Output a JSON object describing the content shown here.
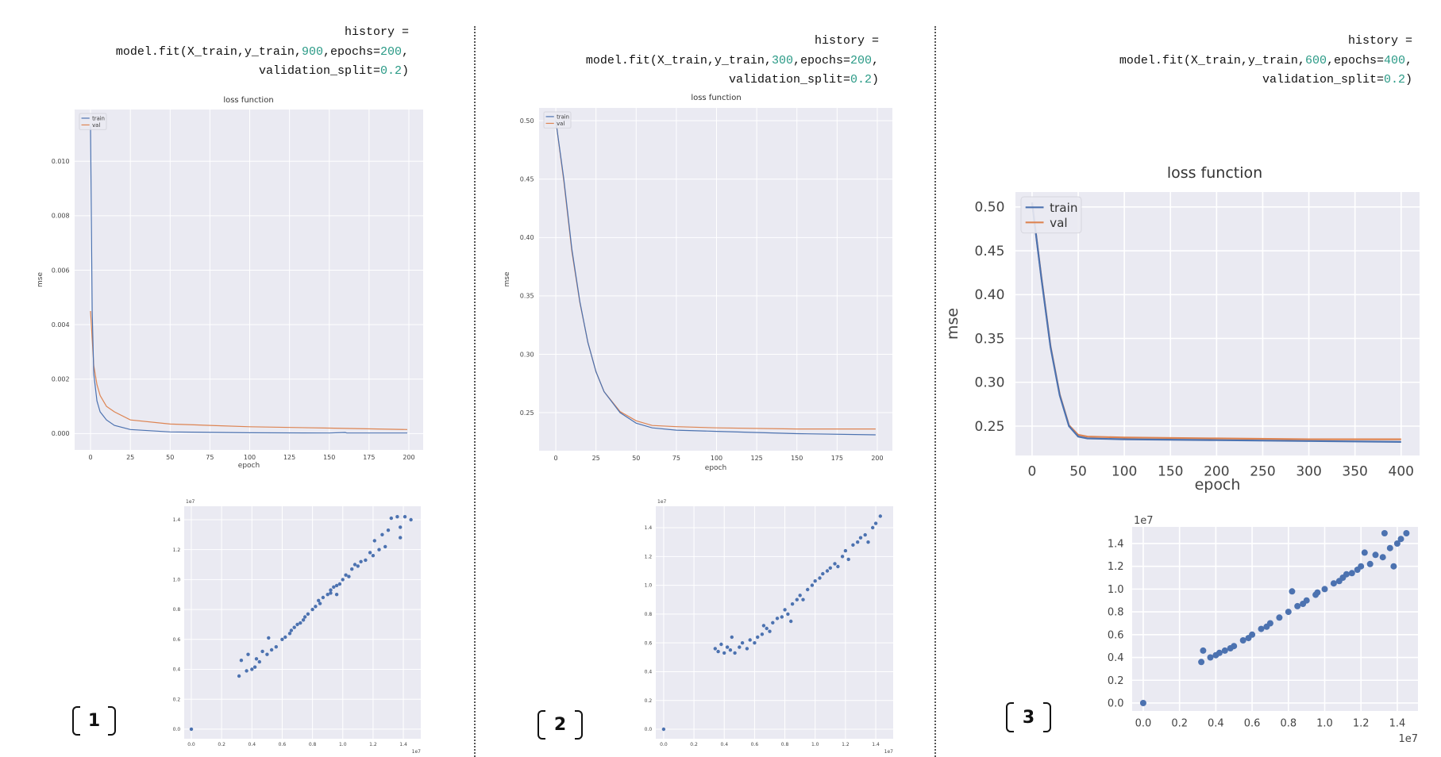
{
  "panels": [
    {
      "label": "1",
      "code": [
        [
          {
            "t": "history ="
          }
        ],
        [
          {
            "t": "model.fit(X_train,y_train,"
          },
          {
            "t": "900",
            "n": true
          },
          {
            "t": ",epochs="
          },
          {
            "t": "200",
            "n": true
          },
          {
            "t": ","
          }
        ],
        [
          {
            "t": "validation_split="
          },
          {
            "t": "0.2",
            "n": true
          },
          {
            "t": ")"
          }
        ]
      ]
    },
    {
      "label": "2",
      "code": [
        [
          {
            "t": "history ="
          }
        ],
        [
          {
            "t": "model.fit(X_train,y_train,"
          },
          {
            "t": "300",
            "n": true
          },
          {
            "t": ",epochs="
          },
          {
            "t": "200",
            "n": true
          },
          {
            "t": ","
          }
        ],
        [
          {
            "t": "validation_split="
          },
          {
            "t": "0.2",
            "n": true
          },
          {
            "t": ")"
          }
        ]
      ]
    },
    {
      "label": "3",
      "code": [
        [
          {
            "t": "history ="
          }
        ],
        [
          {
            "t": "model.fit(X_train,y_train,"
          },
          {
            "t": "600",
            "n": true
          },
          {
            "t": ",epochs="
          },
          {
            "t": "400",
            "n": true
          },
          {
            "t": ","
          }
        ],
        [
          {
            "t": "validation_split="
          },
          {
            "t": "0.2",
            "n": true
          },
          {
            "t": ")"
          }
        ]
      ]
    }
  ],
  "colors": {
    "background": "#eaeaf2",
    "grid": "#ffffff",
    "train": "#4c72b0",
    "val": "#dd8452",
    "code_number": "#2a9a86"
  },
  "chart_data": [
    {
      "type": "line",
      "title": "loss function",
      "xlabel": "epoch",
      "ylabel": "mse",
      "xlim": [
        -10,
        209
      ],
      "ylim": [
        -0.0006,
        0.0119
      ],
      "grid": true,
      "legend": "top-left",
      "xticks": [
        0,
        25,
        50,
        75,
        100,
        125,
        150,
        175,
        200
      ],
      "xtick_labels": [
        "0",
        "25",
        "50",
        "75",
        "100",
        "125",
        "150",
        "175",
        "200"
      ],
      "yticks": [
        0,
        0.002,
        0.004,
        0.006,
        0.008,
        0.01
      ],
      "ytick_labels": [
        "0.000",
        "0.002",
        "0.004",
        "0.006",
        "0.008",
        "0.010"
      ],
      "series": [
        {
          "name": "train",
          "x": [
            0,
            1,
            2,
            4,
            6,
            10,
            15,
            25,
            50,
            100,
            150,
            160,
            161,
            199
          ],
          "y": [
            0.0113,
            0.0045,
            0.0022,
            0.0012,
            0.0008,
            0.0005,
            0.0003,
            0.00015,
            6e-05,
            3e-05,
            2e-05,
            4e-05,
            2e-05,
            2e-05
          ]
        },
        {
          "name": "val",
          "x": [
            0,
            2,
            4,
            6,
            10,
            15,
            25,
            50,
            75,
            100,
            150,
            199
          ],
          "y": [
            0.0045,
            0.0025,
            0.0018,
            0.0014,
            0.001,
            0.0008,
            0.0005,
            0.00035,
            0.0003,
            0.00025,
            0.0002,
            0.00015
          ]
        }
      ]
    },
    {
      "type": "line",
      "title": "loss function",
      "xlabel": "epoch",
      "ylabel": "mse",
      "xlim": [
        -10.4,
        209.4
      ],
      "ylim": [
        0.2174,
        0.511
      ],
      "grid": true,
      "legend": "top-left",
      "xticks": [
        0,
        25,
        50,
        75,
        100,
        125,
        150,
        175,
        200
      ],
      "xtick_labels": [
        "0",
        "25",
        "50",
        "75",
        "100",
        "125",
        "150",
        "175",
        "200"
      ],
      "yticks": [
        0.25,
        0.3,
        0.35,
        0.4,
        0.45,
        0.5
      ],
      "ytick_labels": [
        "0.25",
        "0.30",
        "0.35",
        "0.40",
        "0.45",
        "0.50"
      ],
      "series": [
        {
          "name": "train",
          "x": [
            0,
            5,
            10,
            15,
            20,
            25,
            30,
            40,
            50,
            60,
            75,
            100,
            150,
            199
          ],
          "y": [
            0.5,
            0.45,
            0.39,
            0.345,
            0.31,
            0.285,
            0.268,
            0.25,
            0.241,
            0.237,
            0.235,
            0.234,
            0.232,
            0.231
          ]
        },
        {
          "name": "val",
          "x": [
            0,
            5,
            10,
            15,
            20,
            25,
            30,
            40,
            50,
            60,
            75,
            100,
            150,
            199
          ],
          "y": [
            0.5,
            0.448,
            0.388,
            0.344,
            0.31,
            0.285,
            0.268,
            0.251,
            0.243,
            0.239,
            0.238,
            0.237,
            0.236,
            0.236
          ]
        }
      ]
    },
    {
      "type": "line",
      "title": "loss function",
      "xlabel": "epoch",
      "ylabel": "mse",
      "xlim": [
        -18,
        420
      ],
      "ylim": [
        0.2165,
        0.517
      ],
      "grid": true,
      "legend": "top-left",
      "xticks": [
        0,
        50,
        100,
        150,
        200,
        250,
        300,
        350,
        400
      ],
      "xtick_labels": [
        "0",
        "50",
        "100",
        "150",
        "200",
        "250",
        "300",
        "350",
        "400"
      ],
      "yticks": [
        0.25,
        0.3,
        0.35,
        0.4,
        0.45,
        0.5
      ],
      "ytick_labels": [
        "0.25",
        "0.30",
        "0.35",
        "0.40",
        "0.45",
        "0.50"
      ],
      "series": [
        {
          "name": "train",
          "x": [
            0,
            10,
            20,
            30,
            40,
            50,
            60,
            100,
            200,
            300,
            400
          ],
          "y": [
            0.505,
            0.42,
            0.34,
            0.285,
            0.25,
            0.238,
            0.236,
            0.235,
            0.234,
            0.233,
            0.232
          ]
        },
        {
          "name": "val",
          "x": [
            0,
            10,
            20,
            30,
            40,
            50,
            60,
            100,
            200,
            300,
            400
          ],
          "y": [
            0.505,
            0.421,
            0.341,
            0.286,
            0.251,
            0.24,
            0.238,
            0.237,
            0.236,
            0.235,
            0.235
          ]
        }
      ]
    },
    {
      "type": "scatter",
      "xlim": [
        -0.047,
        1.515
      ],
      "ylim": [
        -0.064,
        1.49
      ],
      "grid": true,
      "x_offset_label": "1e7",
      "y_offset_label": "1e7",
      "xticks": [
        0,
        0.2,
        0.4,
        0.6,
        0.8,
        1.0,
        1.2,
        1.4
      ],
      "xtick_labels": [
        "0.0",
        "0.2",
        "0.4",
        "0.6",
        "0.8",
        "1.0",
        "1.2",
        "1.4"
      ],
      "yticks": [
        0,
        0.2,
        0.4,
        0.6,
        0.8,
        1.0,
        1.2,
        1.4
      ],
      "ytick_labels": [
        "0.0",
        "0.2",
        "0.4",
        "0.6",
        "0.8",
        "1.0",
        "1.2",
        "1.4"
      ],
      "points": [
        [
          0,
          0
        ],
        [
          0.315,
          0.355
        ],
        [
          0.33,
          0.46
        ],
        [
          0.365,
          0.39
        ],
        [
          0.375,
          0.5
        ],
        [
          0.4,
          0.4
        ],
        [
          0.42,
          0.415
        ],
        [
          0.43,
          0.47
        ],
        [
          0.45,
          0.45
        ],
        [
          0.47,
          0.52
        ],
        [
          0.5,
          0.5
        ],
        [
          0.51,
          0.61
        ],
        [
          0.53,
          0.53
        ],
        [
          0.56,
          0.55
        ],
        [
          0.6,
          0.6
        ],
        [
          0.62,
          0.615
        ],
        [
          0.65,
          0.64
        ],
        [
          0.66,
          0.66
        ],
        [
          0.68,
          0.68
        ],
        [
          0.7,
          0.7
        ],
        [
          0.72,
          0.71
        ],
        [
          0.74,
          0.73
        ],
        [
          0.75,
          0.75
        ],
        [
          0.77,
          0.77
        ],
        [
          0.8,
          0.8
        ],
        [
          0.82,
          0.82
        ],
        [
          0.84,
          0.86
        ],
        [
          0.85,
          0.84
        ],
        [
          0.87,
          0.88
        ],
        [
          0.9,
          0.9
        ],
        [
          0.92,
          0.91
        ],
        [
          0.92,
          0.93
        ],
        [
          0.94,
          0.95
        ],
        [
          0.96,
          0.96
        ],
        [
          0.96,
          0.9
        ],
        [
          0.98,
          0.97
        ],
        [
          1.0,
          1.0
        ],
        [
          1.02,
          1.03
        ],
        [
          1.04,
          1.02
        ],
        [
          1.06,
          1.07
        ],
        [
          1.08,
          1.1
        ],
        [
          1.1,
          1.09
        ],
        [
          1.12,
          1.12
        ],
        [
          1.15,
          1.13
        ],
        [
          1.18,
          1.18
        ],
        [
          1.2,
          1.16
        ],
        [
          1.21,
          1.26
        ],
        [
          1.24,
          1.2
        ],
        [
          1.26,
          1.3
        ],
        [
          1.28,
          1.22
        ],
        [
          1.3,
          1.33
        ],
        [
          1.32,
          1.41
        ],
        [
          1.36,
          1.42
        ],
        [
          1.38,
          1.35
        ],
        [
          1.38,
          1.28
        ],
        [
          1.41,
          1.42
        ],
        [
          1.45,
          1.4
        ]
      ]
    },
    {
      "type": "scatter",
      "xlim": [
        -0.052,
        1.515
      ],
      "ylim": [
        -0.066,
        1.549
      ],
      "grid": true,
      "x_offset_label": "1e7",
      "y_offset_label": "1e7",
      "xticks": [
        0,
        0.2,
        0.4,
        0.6,
        0.8,
        1.0,
        1.2,
        1.4
      ],
      "xtick_labels": [
        "0.0",
        "0.2",
        "0.4",
        "0.6",
        "0.8",
        "1.0",
        "1.2",
        "1.4"
      ],
      "yticks": [
        0,
        0.2,
        0.4,
        0.6,
        0.8,
        1.0,
        1.2,
        1.4
      ],
      "ytick_labels": [
        "0.0",
        "0.2",
        "0.4",
        "0.6",
        "0.8",
        "1.0",
        "1.2",
        "1.4"
      ],
      "points": [
        [
          0,
          0
        ],
        [
          0.34,
          0.56
        ],
        [
          0.36,
          0.54
        ],
        [
          0.38,
          0.59
        ],
        [
          0.4,
          0.53
        ],
        [
          0.42,
          0.57
        ],
        [
          0.44,
          0.55
        ],
        [
          0.45,
          0.64
        ],
        [
          0.47,
          0.53
        ],
        [
          0.5,
          0.57
        ],
        [
          0.52,
          0.6
        ],
        [
          0.55,
          0.56
        ],
        [
          0.57,
          0.62
        ],
        [
          0.6,
          0.6
        ],
        [
          0.62,
          0.64
        ],
        [
          0.65,
          0.66
        ],
        [
          0.66,
          0.72
        ],
        [
          0.68,
          0.7
        ],
        [
          0.7,
          0.68
        ],
        [
          0.72,
          0.74
        ],
        [
          0.75,
          0.77
        ],
        [
          0.78,
          0.78
        ],
        [
          0.8,
          0.83
        ],
        [
          0.82,
          0.8
        ],
        [
          0.84,
          0.75
        ],
        [
          0.85,
          0.87
        ],
        [
          0.88,
          0.9
        ],
        [
          0.9,
          0.93
        ],
        [
          0.92,
          0.9
        ],
        [
          0.95,
          0.97
        ],
        [
          0.98,
          1.0
        ],
        [
          1.0,
          1.03
        ],
        [
          1.03,
          1.05
        ],
        [
          1.05,
          1.08
        ],
        [
          1.08,
          1.1
        ],
        [
          1.1,
          1.12
        ],
        [
          1.13,
          1.15
        ],
        [
          1.15,
          1.13
        ],
        [
          1.18,
          1.2
        ],
        [
          1.2,
          1.24
        ],
        [
          1.22,
          1.18
        ],
        [
          1.25,
          1.28
        ],
        [
          1.28,
          1.3
        ],
        [
          1.3,
          1.33
        ],
        [
          1.33,
          1.35
        ],
        [
          1.35,
          1.3
        ],
        [
          1.38,
          1.4
        ],
        [
          1.4,
          1.43
        ],
        [
          1.43,
          1.48
        ]
      ]
    },
    {
      "type": "scatter",
      "xlim": [
        -0.061,
        1.514
      ],
      "ylim": [
        -0.07,
        1.546
      ],
      "grid": true,
      "x_offset_label": "1e7",
      "y_offset_label": "1e7",
      "xticks": [
        0,
        0.2,
        0.4,
        0.6,
        0.8,
        1.0,
        1.2,
        1.4
      ],
      "xtick_labels": [
        "0.0",
        "0.2",
        "0.4",
        "0.6",
        "0.8",
        "1.0",
        "1.2",
        "1.4"
      ],
      "yticks": [
        0,
        0.2,
        0.4,
        0.6,
        0.8,
        1.0,
        1.2,
        1.4
      ],
      "ytick_labels": [
        "0.0",
        "0.2",
        "0.4",
        "0.6",
        "0.8",
        "1.0",
        "1.2",
        "1.4"
      ],
      "points": [
        [
          0,
          0
        ],
        [
          0.32,
          0.36
        ],
        [
          0.33,
          0.46
        ],
        [
          0.37,
          0.4
        ],
        [
          0.4,
          0.42
        ],
        [
          0.42,
          0.44
        ],
        [
          0.45,
          0.46
        ],
        [
          0.48,
          0.48
        ],
        [
          0.5,
          0.5
        ],
        [
          0.55,
          0.55
        ],
        [
          0.58,
          0.57
        ],
        [
          0.6,
          0.6
        ],
        [
          0.65,
          0.65
        ],
        [
          0.68,
          0.67
        ],
        [
          0.7,
          0.7
        ],
        [
          0.75,
          0.75
        ],
        [
          0.8,
          0.8
        ],
        [
          0.82,
          0.98
        ],
        [
          0.85,
          0.85
        ],
        [
          0.88,
          0.87
        ],
        [
          0.9,
          0.9
        ],
        [
          0.95,
          0.95
        ],
        [
          0.96,
          0.97
        ],
        [
          1.0,
          1.0
        ],
        [
          1.05,
          1.05
        ],
        [
          1.08,
          1.07
        ],
        [
          1.1,
          1.1
        ],
        [
          1.12,
          1.13
        ],
        [
          1.15,
          1.14
        ],
        [
          1.18,
          1.17
        ],
        [
          1.2,
          1.2
        ],
        [
          1.22,
          1.32
        ],
        [
          1.25,
          1.22
        ],
        [
          1.28,
          1.3
        ],
        [
          1.32,
          1.28
        ],
        [
          1.33,
          1.49
        ],
        [
          1.36,
          1.36
        ],
        [
          1.38,
          1.2
        ],
        [
          1.4,
          1.4
        ],
        [
          1.42,
          1.44
        ],
        [
          1.45,
          1.49
        ]
      ]
    }
  ]
}
